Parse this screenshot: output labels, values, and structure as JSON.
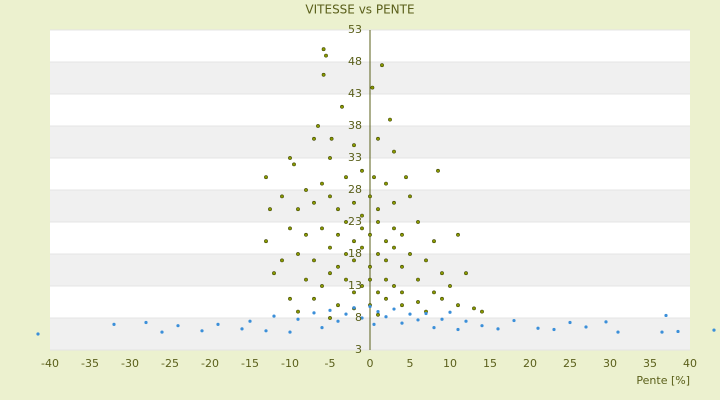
{
  "chart_data": {
    "type": "scatter",
    "title": "VITESSE vs PENTE",
    "x_label": "Pente [%]",
    "xlim": [
      -40,
      40
    ],
    "xticks": [
      -40,
      -35,
      -30,
      -25,
      -20,
      -15,
      -10,
      -5,
      0,
      5,
      10,
      15,
      20,
      25,
      30,
      35,
      40
    ],
    "ylim": [
      3,
      53
    ],
    "yticks": [
      3,
      8,
      13,
      18,
      23,
      28,
      33,
      38,
      43,
      48,
      53
    ],
    "grid": true,
    "series": [
      {
        "color": "#8a9a00",
        "x": [
          -5.8,
          -5.5,
          -5.8,
          1.5,
          0.3,
          -3.5,
          -6.5,
          -7,
          -4.8,
          2.5,
          -10,
          -13,
          -9.5,
          -5,
          -2,
          1,
          3,
          4.5,
          8.5,
          -8,
          -6,
          -3,
          -1,
          0.5,
          2,
          -12.5,
          -11,
          -9,
          -7,
          -5,
          -4,
          -2,
          -1,
          0,
          1,
          3,
          5,
          -13,
          -10,
          -8,
          -6,
          -4,
          -3,
          -2,
          -1,
          0,
          1,
          2,
          3,
          4,
          6,
          8,
          11,
          -11,
          -9,
          -7,
          -5,
          -4,
          -3,
          -2,
          -1,
          0,
          1,
          2,
          3,
          4,
          5,
          7,
          9,
          -12,
          -8,
          -6,
          -5,
          -3,
          -2,
          -1,
          0,
          1,
          2,
          3,
          4,
          6,
          8,
          10,
          12,
          -10,
          -7,
          -4,
          -2,
          0,
          2,
          4,
          6,
          9,
          11,
          14,
          -9,
          -5,
          1,
          7,
          13
        ],
        "values": [
          50,
          49,
          46,
          47.5,
          44,
          41,
          38,
          36,
          36,
          39,
          33,
          30,
          32,
          33,
          35,
          36,
          34,
          30,
          31,
          28,
          29,
          30,
          31,
          30,
          29,
          25,
          27,
          25,
          26,
          27,
          25,
          26,
          24,
          27,
          25,
          26,
          27,
          20,
          22,
          21,
          22,
          21,
          23,
          20,
          22,
          21,
          23,
          20,
          22,
          21,
          23,
          20,
          21,
          17,
          18,
          17,
          19,
          16,
          18,
          17,
          19,
          16,
          18,
          17,
          19,
          16,
          18,
          17,
          15,
          15,
          14,
          13,
          15,
          14,
          12,
          13,
          14,
          12,
          14,
          13,
          12,
          14,
          12,
          13,
          15,
          11,
          11,
          10,
          9.5,
          10,
          11,
          10,
          10.5,
          11,
          10,
          9,
          9,
          8,
          8.5,
          9,
          9.5
        ]
      },
      {
        "color": "#3b8fd9",
        "x": [
          -41.5,
          -32,
          -28,
          -26,
          -24,
          -21,
          -19,
          -16,
          -15,
          -13,
          -12,
          -10,
          -9,
          -7,
          -6,
          -5,
          -4,
          -3,
          -2,
          -1,
          0,
          0.5,
          1,
          2,
          3,
          4,
          5,
          6,
          7,
          8,
          9,
          10,
          11,
          12,
          14,
          16,
          18,
          21,
          23,
          25,
          27,
          29.5,
          31,
          36.5,
          37,
          38.5,
          43
        ],
        "values": [
          5.5,
          7,
          7.3,
          5.8,
          6.8,
          6,
          7,
          6.3,
          7.5,
          6,
          8.3,
          5.8,
          7.8,
          8.8,
          6.5,
          9.2,
          7.5,
          8.6,
          9.6,
          8,
          9.8,
          7,
          9,
          8.2,
          9.4,
          7.2,
          8.6,
          7.7,
          8.7,
          6.5,
          7.8,
          8.9,
          6.2,
          7.5,
          6.8,
          6.3,
          7.6,
          6.4,
          6.2,
          7.3,
          6.6,
          7.4,
          5.8,
          5.8,
          8.4,
          5.9,
          6.1
        ]
      }
    ]
  }
}
